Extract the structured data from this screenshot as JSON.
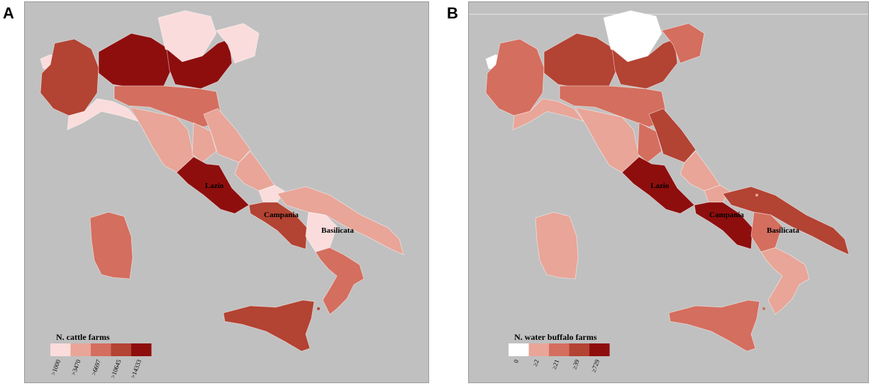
{
  "panels": [
    {
      "letter": "A",
      "legend": {
        "title": "N. cattle farms",
        "classes": [
          ">1000",
          ">3470",
          ">6697",
          ">10645",
          ">14333"
        ],
        "colors": [
          "#fbdcdc",
          "#e8a598",
          "#d46e5f",
          "#b34333",
          "#8e0e0e"
        ]
      },
      "labels": [
        "Lazio",
        "Campania",
        "Basilicata"
      ],
      "regions": [
        {
          "name": "Valle d'Aosta",
          "class": 1
        },
        {
          "name": "Piemonte",
          "class": 4
        },
        {
          "name": "Lombardia",
          "class": 5
        },
        {
          "name": "Trentino-Alto Adige",
          "class": 1
        },
        {
          "name": "Veneto",
          "class": 5
        },
        {
          "name": "Friuli-Venezia Giulia",
          "class": 1
        },
        {
          "name": "Liguria",
          "class": 1
        },
        {
          "name": "Emilia-Romagna",
          "class": 3
        },
        {
          "name": "Toscana",
          "class": 2
        },
        {
          "name": "Umbria",
          "class": 2
        },
        {
          "name": "Marche",
          "class": 2
        },
        {
          "name": "Lazio",
          "class": 5
        },
        {
          "name": "Abruzzo",
          "class": 2
        },
        {
          "name": "Molise",
          "class": 1
        },
        {
          "name": "Campania",
          "class": 4
        },
        {
          "name": "Puglia",
          "class": 2
        },
        {
          "name": "Basilicata",
          "class": 1
        },
        {
          "name": "Calabria",
          "class": 3
        },
        {
          "name": "Sicilia",
          "class": 4
        },
        {
          "name": "Sardegna",
          "class": 3
        }
      ]
    },
    {
      "letter": "B",
      "legend": {
        "title": "N. water buffalo farms",
        "classes": [
          "0",
          "≥2",
          "≥21",
          "≥39",
          "≥729"
        ],
        "colors": [
          "#ffffff",
          "#e8a598",
          "#d46e5f",
          "#b34333",
          "#8e0e0e"
        ]
      },
      "labels": [
        "Lazio",
        "Campania",
        "Basilicata"
      ],
      "regions": [
        {
          "name": "Valle d'Aosta",
          "class": 1
        },
        {
          "name": "Piemonte",
          "class": 3
        },
        {
          "name": "Lombardia",
          "class": 4
        },
        {
          "name": "Trentino-Alto Adige",
          "class": 1
        },
        {
          "name": "Veneto",
          "class": 4
        },
        {
          "name": "Friuli-Venezia Giulia",
          "class": 3
        },
        {
          "name": "Liguria",
          "class": 2
        },
        {
          "name": "Emilia-Romagna",
          "class": 3
        },
        {
          "name": "Toscana",
          "class": 2
        },
        {
          "name": "Umbria",
          "class": 3
        },
        {
          "name": "Marche",
          "class": 4
        },
        {
          "name": "Lazio",
          "class": 5
        },
        {
          "name": "Abruzzo",
          "class": 2
        },
        {
          "name": "Molise",
          "class": 2
        },
        {
          "name": "Campania",
          "class": 5
        },
        {
          "name": "Puglia",
          "class": 4
        },
        {
          "name": "Basilicata",
          "class": 3
        },
        {
          "name": "Calabria",
          "class": 2
        },
        {
          "name": "Sicilia",
          "class": 3
        },
        {
          "name": "Sardegna",
          "class": 2
        }
      ]
    }
  ]
}
